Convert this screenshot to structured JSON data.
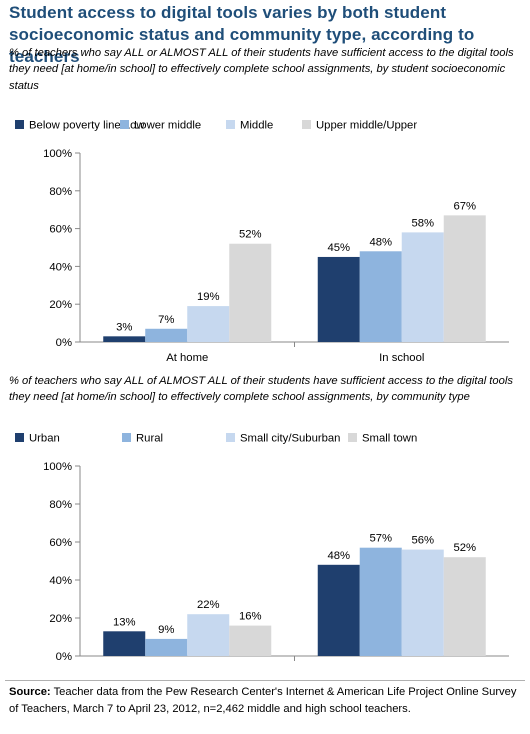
{
  "title": "Student access to digital tools varies by both student socioeconomic status and community type, according to teachers",
  "source_label": "Source:",
  "source_text": "Teacher data from the Pew Research Center's Internet & American Life Project Online Survey of Teachers, March 7 to April 23, 2012, n=2,462 middle and high school teachers.",
  "chart_data": [
    {
      "type": "bar",
      "subtitle": "% of teachers who say ALL or ALMOST ALL of their students have sufficient access to the digital tools they need [at home/in school] to effectively complete school assignments, by student socioeconomic status",
      "categories": [
        "At home",
        "In school"
      ],
      "series": [
        {
          "name": "Below poverty line/Low",
          "color": "#1f3f6e",
          "values": [
            3,
            45
          ]
        },
        {
          "name": "Lower middle",
          "color": "#8eb4de",
          "values": [
            7,
            48
          ]
        },
        {
          "name": "Middle",
          "color": "#c6d8ef",
          "values": [
            19,
            58
          ]
        },
        {
          "name": "Upper middle/Upper",
          "color": "#d8d8d8",
          "values": [
            52,
            67
          ]
        }
      ],
      "ylim": [
        0,
        100
      ],
      "yticks": [
        "0%",
        "20%",
        "40%",
        "60%",
        "80%",
        "100%"
      ],
      "value_suffix": "%",
      "legend": "top",
      "grid": false
    },
    {
      "type": "bar",
      "subtitle": "% of teachers who say ALL of ALMOST ALL of their students have sufficient access to the digital tools they need [at home/in school] to effectively complete school assignments, by community type",
      "categories": [
        "At home",
        "In school"
      ],
      "series": [
        {
          "name": "Urban",
          "color": "#1f3f6e",
          "values": [
            13,
            48
          ]
        },
        {
          "name": "Rural",
          "color": "#8eb4de",
          "values": [
            9,
            57
          ]
        },
        {
          "name": "Small city/Suburban",
          "color": "#c6d8ef",
          "values": [
            22,
            56
          ]
        },
        {
          "name": "Small town",
          "color": "#d8d8d8",
          "values": [
            16,
            52
          ]
        }
      ],
      "ylim": [
        0,
        100
      ],
      "yticks": [
        "0%",
        "20%",
        "40%",
        "60%",
        "80%",
        "100%"
      ],
      "value_suffix": "%",
      "legend": "top",
      "grid": false
    }
  ]
}
